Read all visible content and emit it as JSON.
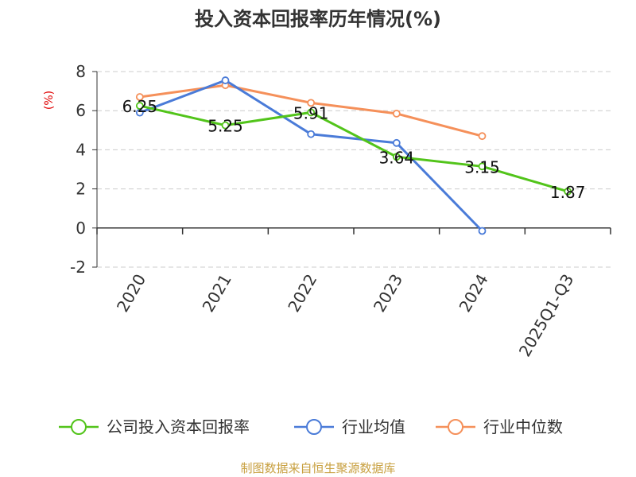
{
  "chart_data": {
    "type": "line",
    "title": "投入资本回报率历年情况(%)",
    "unit": "(%)",
    "categories": [
      "2020",
      "2021",
      "2022",
      "2023",
      "2024",
      "2025Q1-Q3"
    ],
    "ylim": [
      -2,
      8
    ],
    "yticks": [
      -2,
      0,
      2,
      4,
      6,
      8
    ],
    "series": [
      {
        "name": "公司投入资本回报率",
        "color": "#52c41a",
        "values": [
          6.25,
          5.25,
          5.91,
          3.64,
          3.15,
          1.87
        ],
        "labels": [
          "6.25",
          "5.25",
          "5.91",
          "3.64",
          "3.15",
          "1.87"
        ]
      },
      {
        "name": "行业均值",
        "color": "#4a7bd8",
        "values": [
          5.9,
          7.55,
          4.8,
          4.35,
          -0.15,
          null
        ]
      },
      {
        "name": "行业中位数",
        "color": "#f5905a",
        "values": [
          6.7,
          7.3,
          6.4,
          5.85,
          4.7,
          null
        ]
      }
    ],
    "source": "制图数据来自恒生聚源数据库"
  }
}
